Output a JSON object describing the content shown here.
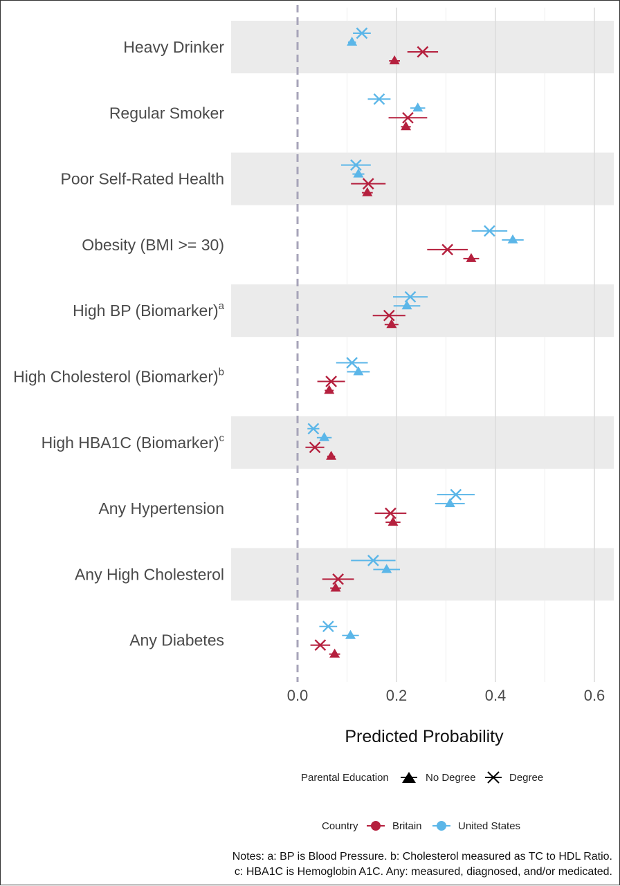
{
  "chart_data": {
    "type": "scatter",
    "xlabel": "Predicted Probability",
    "xlim": [
      -0.14,
      0.64
    ],
    "xticks": [
      0.0,
      0.2,
      0.4,
      0.6
    ],
    "xtick_labels": [
      "0.0",
      "0.2",
      "0.4",
      "0.6"
    ],
    "reference_line_x": 0.0,
    "grid": true,
    "categories": [
      {
        "label": "Heavy Drinker",
        "sup": "",
        "shaded": true
      },
      {
        "label": "Regular Smoker",
        "sup": "",
        "shaded": false
      },
      {
        "label": "Poor Self-Rated Health",
        "sup": "",
        "shaded": true
      },
      {
        "label": "Obesity (BMI >= 30)",
        "sup": "",
        "shaded": false
      },
      {
        "label": "High BP (Biomarker)",
        "sup": "a",
        "shaded": true
      },
      {
        "label": "High Cholesterol (Biomarker)",
        "sup": "b",
        "shaded": false
      },
      {
        "label": "High HBA1C (Biomarker)",
        "sup": "c",
        "shaded": true
      },
      {
        "label": "Any Hypertension",
        "sup": "",
        "shaded": false
      },
      {
        "label": "Any High Cholesterol",
        "sup": "",
        "shaded": true
      },
      {
        "label": "Any Diabetes",
        "sup": "",
        "shaded": false
      }
    ],
    "series": [
      {
        "name": "United States",
        "education": "Degree",
        "color": "#5BB6E8",
        "marker": "x",
        "values": [
          0.13,
          0.165,
          0.118,
          0.388,
          0.228,
          0.11,
          0.032,
          0.32,
          0.153,
          0.062
        ],
        "ci": [
          [
            0.112,
            0.148
          ],
          [
            0.142,
            0.188
          ],
          [
            0.088,
            0.148
          ],
          [
            0.352,
            0.424
          ],
          [
            0.193,
            0.263
          ],
          [
            0.078,
            0.142
          ],
          [
            0.02,
            0.044
          ],
          [
            0.282,
            0.358
          ],
          [
            0.108,
            0.198
          ],
          [
            0.044,
            0.08
          ]
        ]
      },
      {
        "name": "United States",
        "education": "No Degree",
        "color": "#5BB6E8",
        "marker": "triangle",
        "values": [
          0.11,
          0.243,
          0.123,
          0.435,
          0.221,
          0.123,
          0.054,
          0.308,
          0.18,
          0.107
        ],
        "ci": [
          [
            0.102,
            0.118
          ],
          [
            0.228,
            0.258
          ],
          [
            0.111,
            0.135
          ],
          [
            0.413,
            0.457
          ],
          [
            0.194,
            0.248
          ],
          [
            0.1,
            0.146
          ],
          [
            0.039,
            0.069
          ],
          [
            0.278,
            0.338
          ],
          [
            0.153,
            0.207
          ],
          [
            0.09,
            0.124
          ]
        ]
      },
      {
        "name": "Britain",
        "education": "Degree",
        "color": "#B5203E",
        "marker": "x",
        "values": [
          0.253,
          0.223,
          0.143,
          0.303,
          0.185,
          0.068,
          0.035,
          0.188,
          0.082,
          0.046
        ],
        "ci": [
          [
            0.222,
            0.284
          ],
          [
            0.184,
            0.262
          ],
          [
            0.108,
            0.178
          ],
          [
            0.262,
            0.344
          ],
          [
            0.152,
            0.218
          ],
          [
            0.04,
            0.096
          ],
          [
            0.016,
            0.054
          ],
          [
            0.156,
            0.22
          ],
          [
            0.05,
            0.114
          ],
          [
            0.026,
            0.066
          ]
        ]
      },
      {
        "name": "Britain",
        "education": "No Degree",
        "color": "#B5203E",
        "marker": "triangle",
        "values": [
          0.196,
          0.219,
          0.141,
          0.351,
          0.19,
          0.064,
          0.068,
          0.193,
          0.077,
          0.075
        ],
        "ci": [
          [
            0.185,
            0.207
          ],
          [
            0.209,
            0.229
          ],
          [
            0.13,
            0.152
          ],
          [
            0.335,
            0.367
          ],
          [
            0.176,
            0.204
          ],
          [
            0.055,
            0.073
          ],
          [
            0.06,
            0.076
          ],
          [
            0.178,
            0.208
          ],
          [
            0.066,
            0.088
          ],
          [
            0.064,
            0.086
          ]
        ]
      }
    ]
  },
  "legend": {
    "education_title": "Parental Education",
    "no_degree_label": "No Degree",
    "degree_label": "Degree",
    "country_title": "Country",
    "britain_label": "Britain",
    "us_label": "United States",
    "britain_color": "#B5203E",
    "us_color": "#5BB6E8"
  },
  "notes": {
    "line1": "Notes: a: BP is Blood Pressure. b: Cholesterol measured as TC to HDL Ratio.",
    "line2": "c: HBA1C is Hemoglobin A1C. Any: measured, diagnosed, and/or medicated."
  }
}
